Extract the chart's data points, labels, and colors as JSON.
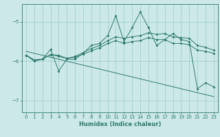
{
  "x": [
    0,
    1,
    2,
    3,
    4,
    5,
    6,
    7,
    8,
    9,
    10,
    11,
    12,
    13,
    14,
    15,
    16,
    17,
    18,
    19,
    20,
    21,
    22,
    23
  ],
  "line_zigzag": [
    -5.85,
    -6.0,
    -5.95,
    -5.7,
    -6.25,
    -5.95,
    -5.95,
    -5.8,
    -5.6,
    -5.55,
    -5.35,
    -4.85,
    -5.5,
    -5.15,
    -4.75,
    -5.15,
    -5.6,
    -5.45,
    -5.3,
    -5.45,
    -5.5,
    -6.7,
    -6.55,
    -6.65
  ],
  "line_smooth": [
    -5.85,
    -5.97,
    -5.95,
    -5.83,
    -5.85,
    -5.93,
    -5.88,
    -5.78,
    -5.68,
    -5.6,
    -5.48,
    -5.38,
    -5.42,
    -5.38,
    -5.35,
    -5.28,
    -5.32,
    -5.3,
    -5.38,
    -5.4,
    -5.42,
    -5.6,
    -5.65,
    -5.72
  ],
  "line_flat": [
    -5.85,
    -5.97,
    -5.95,
    -5.83,
    -5.88,
    -5.93,
    -5.9,
    -5.82,
    -5.74,
    -5.66,
    -5.55,
    -5.48,
    -5.55,
    -5.5,
    -5.48,
    -5.4,
    -5.45,
    -5.45,
    -5.55,
    -5.55,
    -5.58,
    -5.72,
    -5.75,
    -5.8
  ],
  "line_trend": [
    -5.75,
    -5.8,
    -5.85,
    -5.9,
    -5.95,
    -6.0,
    -6.05,
    -6.1,
    -6.15,
    -6.2,
    -6.25,
    -6.3,
    -6.35,
    -6.4,
    -6.45,
    -6.5,
    -6.55,
    -6.6,
    -6.65,
    -6.7,
    -6.75,
    -6.8,
    -6.85,
    -6.9
  ],
  "color": "#2d7a6e",
  "bg_color": "#cce8e8",
  "grid_color": "#99cccc",
  "xlabel": "Humidex (Indice chaleur)",
  "ylim": [
    -7.3,
    -4.55
  ],
  "xlim": [
    -0.5,
    23.5
  ],
  "yticks": [
    -7,
    -6,
    -5
  ],
  "xticks": [
    0,
    1,
    2,
    3,
    4,
    5,
    6,
    7,
    8,
    9,
    10,
    11,
    12,
    13,
    14,
    15,
    16,
    17,
    18,
    19,
    20,
    21,
    22,
    23
  ]
}
